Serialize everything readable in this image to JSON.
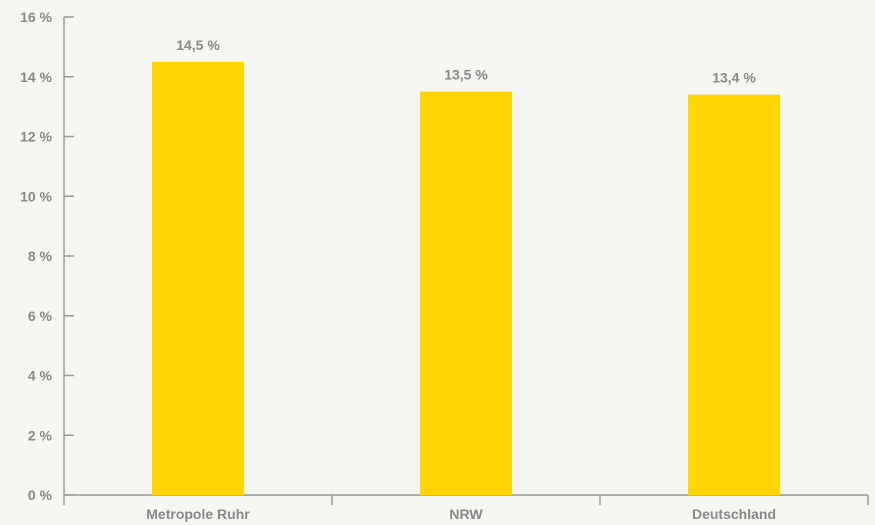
{
  "chart_data": {
    "type": "bar",
    "categories": [
      "Metropole Ruhr",
      "NRW",
      "Deutschland"
    ],
    "values": [
      14.5,
      13.5,
      13.4
    ],
    "data_labels": [
      "14,5 %",
      "13,5 %",
      "13,4 %"
    ],
    "ylim": [
      0,
      16
    ],
    "yticks": [
      0,
      2,
      4,
      6,
      8,
      10,
      12,
      14,
      16
    ],
    "ytick_labels": [
      "0 %",
      "2 %",
      "4 %",
      "6 %",
      "8 %",
      "10 %",
      "12 %",
      "14 %",
      "16 %"
    ],
    "title": "",
    "xlabel": "",
    "ylabel": "",
    "grid": false,
    "bar_color": "#ffd500",
    "axis_color": "#999999",
    "text_color": "#888888",
    "background": "#f5f5f1"
  }
}
